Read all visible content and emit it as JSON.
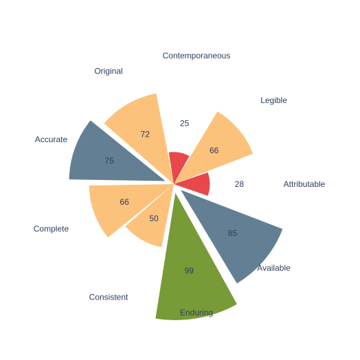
{
  "chart_data": {
    "type": "polar-bar",
    "title": "",
    "categories": [
      "Attributable",
      "Legible",
      "Contemporaneous",
      "Original",
      "Accurate",
      "Complete",
      "Consistent",
      "Enduring",
      "Available"
    ],
    "values": [
      28,
      66,
      25,
      72,
      75,
      66,
      50,
      99,
      85
    ],
    "colors": [
      "#e8474b",
      "#fcc17b",
      "#e8474b",
      "#fcc17b",
      "#637f93",
      "#fcc17b",
      "#fcc17b",
      "#789b38",
      "#637f93"
    ],
    "exploded": [
      false,
      false,
      false,
      false,
      true,
      false,
      false,
      true,
      true
    ],
    "radial_range": [
      0,
      100
    ],
    "grid": false,
    "legend": "none"
  }
}
